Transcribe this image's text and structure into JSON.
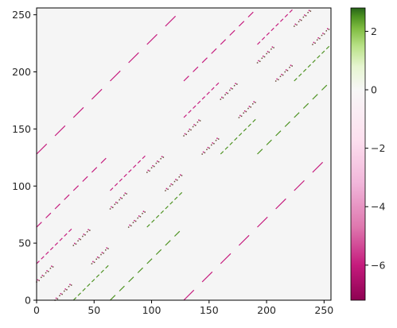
{
  "chart_data": {
    "type": "heatmap",
    "title": "",
    "xlabel": "",
    "ylabel": "",
    "xlim": [
      0,
      255
    ],
    "ylim": [
      0,
      255
    ],
    "x_ticks": [
      0,
      50,
      100,
      150,
      200,
      250
    ],
    "y_ticks": [
      0,
      50,
      100,
      150,
      200,
      250
    ],
    "background_value": 0,
    "background_color": "#f5f5f5",
    "colormap": "PiYG",
    "colorbar": {
      "min": -7.2,
      "max": 2.8,
      "ticks": [
        2,
        0,
        -2,
        -4,
        -6
      ],
      "tick_labels": [
        "2",
        "0",
        "−2",
        "−4",
        "−6"
      ],
      "colors": {
        "min": "#8e0152",
        "mid": "#f7f7f7",
        "max": "#276419"
      }
    },
    "structure": {
      "description_values": "sparse banded matrix of pixel-like nonzero entries",
      "dash_color_negative": "#c51b7d",
      "dash_color_positive": "#4d9221",
      "dot_color": "#6b4a3a",
      "long_dash_diagonals": [
        {
          "row_start": 128,
          "row_end": 255,
          "col_start": 0,
          "col_end": 127,
          "value": -6.5
        },
        {
          "row_start": 0,
          "row_end": 127,
          "col_start": 128,
          "col_end": 255,
          "value": -6.5
        },
        {
          "row_start": 64,
          "row_end": 127,
          "col_start": 0,
          "col_end": 63,
          "value": -6.0
        },
        {
          "row_start": 0,
          "row_end": 63,
          "col_start": 64,
          "col_end": 127,
          "value": 1.6
        },
        {
          "row_start": 192,
          "row_end": 255,
          "col_start": 128,
          "col_end": 191,
          "value": -6.0
        },
        {
          "row_start": 128,
          "row_end": 191,
          "col_start": 192,
          "col_end": 255,
          "value": 1.6
        }
      ],
      "short_dash_diagonals": [
        {
          "row_start": 32,
          "row_end": 63,
          "col_start": 0,
          "col_end": 31,
          "value": -6.0
        },
        {
          "row_start": 0,
          "row_end": 31,
          "col_start": 32,
          "col_end": 63,
          "value": 1.6
        },
        {
          "row_start": 96,
          "row_end": 127,
          "col_start": 64,
          "col_end": 95,
          "value": -6.0
        },
        {
          "row_start": 64,
          "row_end": 95,
          "col_start": 96,
          "col_end": 127,
          "value": 1.6
        },
        {
          "row_start": 160,
          "row_end": 191,
          "col_start": 128,
          "col_end": 159,
          "value": -6.0
        },
        {
          "row_start": 128,
          "row_end": 159,
          "col_start": 160,
          "col_end": 191,
          "value": 1.6
        },
        {
          "row_start": 224,
          "row_end": 255,
          "col_start": 192,
          "col_end": 223,
          "value": -6.0
        },
        {
          "row_start": 192,
          "row_end": 223,
          "col_start": 224,
          "col_end": 255,
          "value": 1.6
        }
      ],
      "dotted_clusters": [
        {
          "row_start": 16,
          "row_end": 31,
          "col_start": 0,
          "col_end": 15
        },
        {
          "row_start": 0,
          "row_end": 15,
          "col_start": 16,
          "col_end": 31
        },
        {
          "row_start": 48,
          "row_end": 63,
          "col_start": 32,
          "col_end": 47
        },
        {
          "row_start": 32,
          "row_end": 47,
          "col_start": 48,
          "col_end": 63
        },
        {
          "row_start": 80,
          "row_end": 95,
          "col_start": 64,
          "col_end": 79
        },
        {
          "row_start": 64,
          "row_end": 79,
          "col_start": 80,
          "col_end": 95
        },
        {
          "row_start": 112,
          "row_end": 127,
          "col_start": 96,
          "col_end": 111
        },
        {
          "row_start": 96,
          "row_end": 111,
          "col_start": 112,
          "col_end": 127
        },
        {
          "row_start": 144,
          "row_end": 159,
          "col_start": 128,
          "col_end": 143
        },
        {
          "row_start": 128,
          "row_end": 143,
          "col_start": 144,
          "col_end": 159
        },
        {
          "row_start": 176,
          "row_end": 191,
          "col_start": 160,
          "col_end": 175
        },
        {
          "row_start": 160,
          "row_end": 175,
          "col_start": 176,
          "col_end": 191
        },
        {
          "row_start": 208,
          "row_end": 223,
          "col_start": 192,
          "col_end": 207
        },
        {
          "row_start": 192,
          "row_end": 207,
          "col_start": 208,
          "col_end": 223
        },
        {
          "row_start": 240,
          "row_end": 255,
          "col_start": 224,
          "col_end": 239
        },
        {
          "row_start": 224,
          "row_end": 239,
          "col_start": 240,
          "col_end": 255
        }
      ]
    }
  }
}
